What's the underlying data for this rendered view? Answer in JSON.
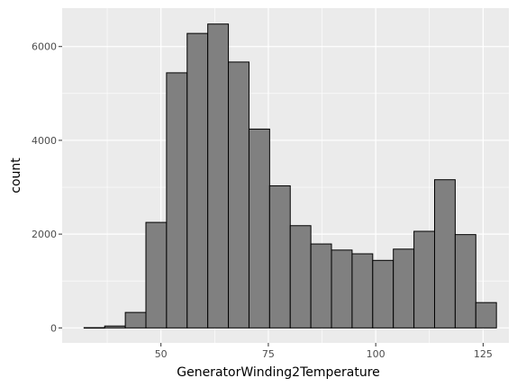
{
  "chart_data": {
    "type": "bar",
    "subtype": "histogram",
    "xlabel": "GeneratorWinding2Temperature",
    "ylabel": "count",
    "xlim": [
      27.0,
      131.0
    ],
    "ylim": [
      -320,
      6820
    ],
    "x_ticks": [
      50,
      75,
      100,
      125
    ],
    "x_tick_labels": [
      "50",
      "75",
      "100",
      "125"
    ],
    "y_ticks": [
      0,
      2000,
      4000,
      6000
    ],
    "y_tick_labels": [
      "0",
      "2000",
      "4000",
      "6000"
    ],
    "bin_width": 4.8,
    "bins": [
      {
        "start": 32.1,
        "end": 36.9,
        "count": 5
      },
      {
        "start": 36.9,
        "end": 41.7,
        "count": 40
      },
      {
        "start": 41.7,
        "end": 46.5,
        "count": 330
      },
      {
        "start": 46.5,
        "end": 51.3,
        "count": 2250
      },
      {
        "start": 51.3,
        "end": 56.1,
        "count": 5440
      },
      {
        "start": 56.1,
        "end": 60.9,
        "count": 6280
      },
      {
        "start": 60.9,
        "end": 65.7,
        "count": 6480
      },
      {
        "start": 65.7,
        "end": 70.5,
        "count": 5670
      },
      {
        "start": 70.5,
        "end": 75.3,
        "count": 4240
      },
      {
        "start": 75.3,
        "end": 80.1,
        "count": 3030
      },
      {
        "start": 80.1,
        "end": 84.9,
        "count": 2180
      },
      {
        "start": 84.9,
        "end": 89.7,
        "count": 1790
      },
      {
        "start": 89.7,
        "end": 94.5,
        "count": 1660
      },
      {
        "start": 94.5,
        "end": 99.3,
        "count": 1580
      },
      {
        "start": 99.3,
        "end": 104.1,
        "count": 1440
      },
      {
        "start": 104.1,
        "end": 108.9,
        "count": 1680
      },
      {
        "start": 108.9,
        "end": 113.7,
        "count": 2060
      },
      {
        "start": 113.7,
        "end": 118.5,
        "count": 3160
      },
      {
        "start": 118.5,
        "end": 123.3,
        "count": 1990
      },
      {
        "start": 123.3,
        "end": 128.1,
        "count": 540
      }
    ],
    "grid": true,
    "bar_fill": "#808080",
    "bar_stroke": "#000000",
    "panel_background": "#ebebeb",
    "gridline_color": "#ffffff"
  }
}
